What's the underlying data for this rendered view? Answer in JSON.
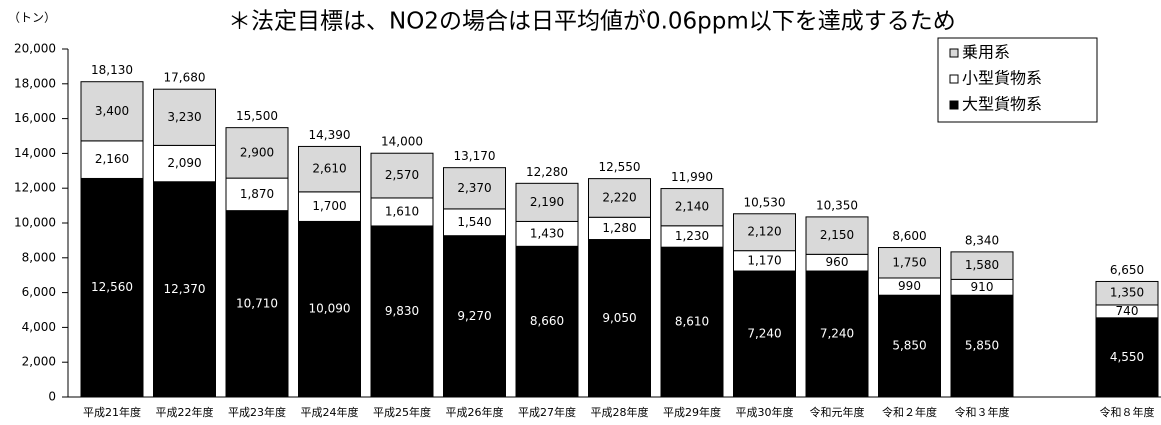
{
  "chart_data": {
    "type": "stacked_bar",
    "title": "＊法定目標は、NO2の場合は日平均値が0.06ppm以下を達成するため",
    "y_label": "（トン）",
    "categories": [
      "平成21年度",
      "平成22年度",
      "平成23年度",
      "平成24年度",
      "平成25年度",
      "平成26年度",
      "平成27年度",
      "平成28年度",
      "平成29年度",
      "平成30年度",
      "令和元年度",
      "令和２年度",
      "令和３年度",
      null,
      "令和８年度"
    ],
    "series": [
      {
        "name": "大型貨物系",
        "color": "#000000",
        "label_color": "#ffffff",
        "values": [
          12560,
          12370,
          10710,
          10090,
          9830,
          9270,
          8660,
          9050,
          8610,
          7240,
          7240,
          5850,
          5850,
          null,
          4550
        ],
        "value_labels": [
          "12,560",
          "12,370",
          "10,710",
          "10,090",
          "9,830",
          "9,270",
          "8,660",
          "9,050",
          "8,610",
          "7,240",
          "7,240",
          "5,850",
          "5,850",
          null,
          "4,550"
        ]
      },
      {
        "name": "小型貨物系",
        "color": "#ffffff",
        "label_color": "#000000",
        "values": [
          2160,
          2090,
          1870,
          1700,
          1610,
          1540,
          1430,
          1280,
          1230,
          1170,
          960,
          990,
          910,
          null,
          740
        ],
        "value_labels": [
          "2,160",
          "2,090",
          "1,870",
          "1,700",
          "1,610",
          "1,540",
          "1,430",
          "1,280",
          "1,230",
          "1,170",
          "960",
          "990",
          "910",
          null,
          "740"
        ]
      },
      {
        "name": "乗用系",
        "color": "#d9d9d9",
        "label_color": "#000000",
        "values": [
          3400,
          3230,
          2900,
          2610,
          2570,
          2370,
          2190,
          2220,
          2140,
          2120,
          2150,
          1750,
          1580,
          null,
          1350
        ],
        "value_labels": [
          "3,400",
          "3,230",
          "2,900",
          "2,610",
          "2,570",
          "2,370",
          "2,190",
          "2,220",
          "2,140",
          "2,120",
          "2,150",
          "1,750",
          "1,580",
          null,
          "1,350"
        ]
      }
    ],
    "totals": [
      18130,
      17680,
      15500,
      14390,
      14000,
      13170,
      12280,
      12550,
      11990,
      10530,
      10350,
      8600,
      8340,
      null,
      6650
    ],
    "total_labels": [
      "18,130",
      "17,680",
      "15,500",
      "14,390",
      "14,000",
      "13,170",
      "12,280",
      "12,550",
      "11,990",
      "10,530",
      "10,350",
      "8,600",
      "8,340",
      null,
      "6,650"
    ],
    "ylim": [
      0,
      20000
    ],
    "yticks": [
      0,
      {
        "value": 2000,
        "label": "2,000"
      },
      {
        "value": 4000,
        "label": "4,000"
      },
      {
        "value": 6000,
        "label": "6,000"
      },
      {
        "value": 8000,
        "label": "8,000"
      },
      {
        "value": 10000,
        "label": "10,000"
      },
      {
        "value": 12000,
        "label": "12,000"
      },
      {
        "value": 14000,
        "label": "14,000"
      },
      {
        "value": 16000,
        "label": "16,000"
      },
      {
        "value": 18000,
        "label": "18,000"
      },
      {
        "value": 20000,
        "label": "20,000"
      }
    ],
    "legend": "top-right",
    "grid": false
  }
}
